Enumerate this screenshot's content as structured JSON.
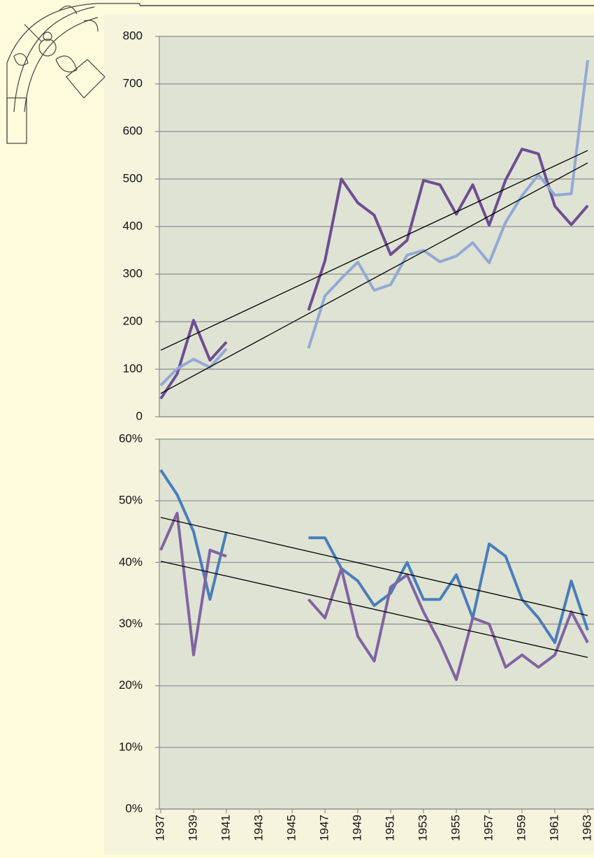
{
  "chart_data": [
    {
      "type": "line",
      "x": [
        1937,
        1938,
        1939,
        1940,
        1941,
        1942,
        1943,
        1944,
        1945,
        1946,
        1947,
        1948,
        1949,
        1950,
        1951,
        1952,
        1953,
        1954,
        1955,
        1956,
        1957,
        1958,
        1959,
        1960,
        1961,
        1962,
        1963
      ],
      "xlim": [
        1937,
        1963
      ],
      "ylim": [
        0,
        800
      ],
      "yticks": [
        0,
        100,
        200,
        300,
        400,
        500,
        600,
        700,
        800
      ],
      "grid": true,
      "series": [
        {
          "color": "#6e4e93",
          "values": [
            38,
            90,
            203,
            119,
            157,
            null,
            null,
            null,
            null,
            224,
            328,
            500,
            450,
            424,
            341,
            371,
            497,
            488,
            426,
            488,
            403,
            498,
            563,
            553,
            443,
            404,
            444
          ]
        },
        {
          "color": "#93a9d6",
          "values": [
            66,
            101,
            121,
            104,
            143,
            null,
            null,
            null,
            null,
            144,
            254,
            291,
            325,
            266,
            278,
            340,
            350,
            326,
            338,
            366,
            324,
            409,
            465,
            509,
            466,
            469,
            750
          ]
        }
      ],
      "trendlines": [
        {
          "color": "#000000",
          "x": [
            1937,
            1963
          ],
          "values": [
            140,
            560
          ]
        },
        {
          "color": "#000000",
          "x": [
            1937,
            1963
          ],
          "values": [
            49,
            534
          ]
        }
      ]
    },
    {
      "type": "line",
      "x": [
        1937,
        1938,
        1939,
        1940,
        1941,
        1942,
        1943,
        1944,
        1945,
        1946,
        1947,
        1948,
        1949,
        1950,
        1951,
        1952,
        1953,
        1954,
        1955,
        1956,
        1957,
        1958,
        1959,
        1960,
        1961,
        1962,
        1963
      ],
      "xlim": [
        1937,
        1963
      ],
      "xticks": [
        1937,
        1939,
        1941,
        1943,
        1945,
        1947,
        1949,
        1951,
        1953,
        1955,
        1957,
        1959,
        1961,
        1963
      ],
      "ylim": [
        0,
        60
      ],
      "yticks": [
        {
          "value": 0,
          "label": "0%"
        },
        {
          "value": 10,
          "label": "10%"
        },
        {
          "value": 20,
          "label": "20%"
        },
        {
          "value": 30,
          "label": "30%"
        },
        {
          "value": 40,
          "label": "40%"
        },
        {
          "value": 50,
          "label": "50%"
        },
        {
          "value": 60,
          "label": "60%"
        }
      ],
      "grid": true,
      "series": [
        {
          "color": "#4a7ebb",
          "values": [
            55,
            51,
            45,
            34,
            45,
            null,
            null,
            null,
            null,
            44,
            44,
            39,
            37,
            33,
            35,
            40,
            34,
            34,
            38,
            31,
            43,
            41,
            34,
            31,
            27,
            37,
            29
          ]
        },
        {
          "color": "#8064a2",
          "values": [
            42,
            48,
            25,
            42,
            41,
            null,
            null,
            null,
            null,
            34,
            31,
            39,
            28,
            24,
            36,
            38,
            32,
            27,
            21,
            31,
            30,
            23,
            25,
            23,
            25,
            32,
            27
          ]
        }
      ],
      "trendlines": [
        {
          "color": "#000000",
          "x": [
            1937,
            1963
          ],
          "values": [
            47.3,
            31.4
          ]
        },
        {
          "color": "#000000",
          "x": [
            1937,
            1963
          ],
          "values": [
            40.2,
            24.6
          ]
        }
      ]
    }
  ]
}
